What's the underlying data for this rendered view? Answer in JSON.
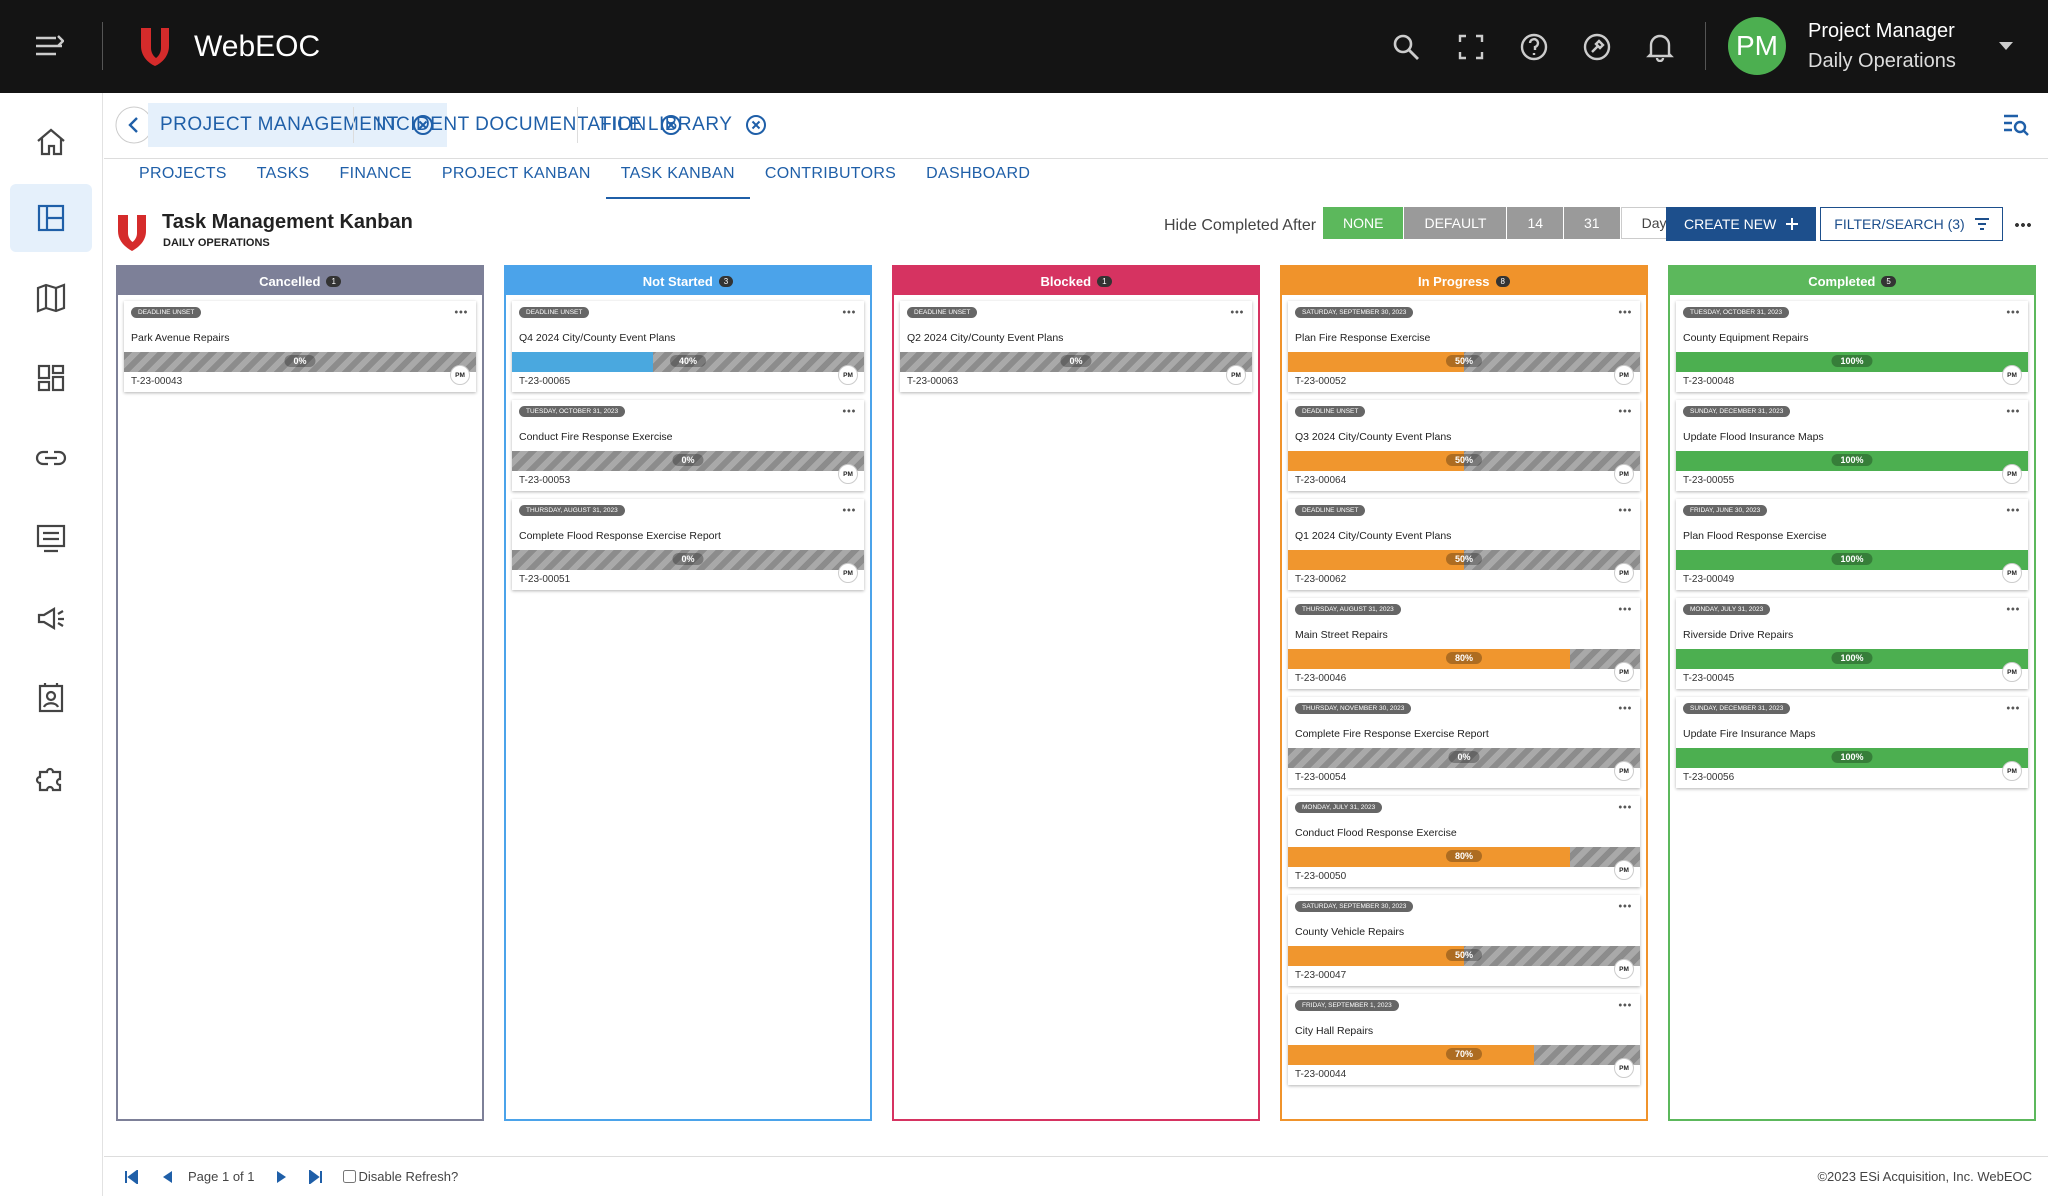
{
  "header": {
    "app_name": "WebEOC",
    "user_name": "Project Manager",
    "user_context": "Daily Operations",
    "user_initials": "PM"
  },
  "tabs": [
    "PROJECT MANAGEMENT",
    "INCIDENT DOCUMENTATION",
    "FILE LIBRARY"
  ],
  "subnav": {
    "items": [
      "PROJECTS",
      "TASKS",
      "FINANCE",
      "PROJECT KANBAN",
      "TASK KANBAN",
      "CONTRIBUTORS",
      "DASHBOARD"
    ],
    "active": 4
  },
  "board": {
    "title": "Task Management Kanban",
    "subtitle": "DAILY OPERATIONS",
    "hide_label": "Hide Completed After",
    "hide_options": [
      "NONE",
      "DEFAULT",
      "14",
      "31"
    ],
    "hide_active": 0,
    "hide_unit": "Days",
    "create_button": "CREATE NEW",
    "filter_button": "FILTER/SEARCH (3)"
  },
  "columns": [
    {
      "name": "Cancelled",
      "count": "1",
      "color": "#7d8098",
      "fill": "#9e9e9e",
      "cards": [
        {
          "date": "DEADLINE UNSET",
          "title": "Park Avenue Repairs",
          "progress": "0%",
          "id": "T-23-00043",
          "assignee": "PM"
        }
      ]
    },
    {
      "name": "Not Started",
      "count": "3",
      "color": "#4ba3ea",
      "fill": "#4aa8df",
      "cards": [
        {
          "date": "DEADLINE UNSET",
          "title": "Q4 2024 City/County Event Plans",
          "progress": "40%",
          "id": "T-23-00065",
          "assignee": "PM"
        },
        {
          "date": "TUESDAY, OCTOBER 31, 2023",
          "title": "Conduct Fire Response Exercise",
          "progress": "0%",
          "id": "T-23-00053",
          "assignee": "PM"
        },
        {
          "date": "THURSDAY, AUGUST 31, 2023",
          "title": "Complete Flood Response Exercise Report",
          "progress": "0%",
          "id": "T-23-00051",
          "assignee": "PM"
        }
      ]
    },
    {
      "name": "Blocked",
      "count": "1",
      "color": "#d63361",
      "fill": "#d63361",
      "cards": [
        {
          "date": "DEADLINE UNSET",
          "title": "Q2 2024 City/County Event Plans",
          "progress": "0%",
          "id": "T-23-00063",
          "assignee": "PM"
        }
      ]
    },
    {
      "name": "In Progress",
      "count": "8",
      "color": "#f0932b",
      "fill": "#f0962e",
      "cards": [
        {
          "date": "SATURDAY, SEPTEMBER 30, 2023",
          "title": "Plan Fire Response Exercise",
          "progress": "50%",
          "id": "T-23-00052",
          "assignee": "PM"
        },
        {
          "date": "DEADLINE UNSET",
          "title": "Q3 2024 City/County Event Plans",
          "progress": "50%",
          "id": "T-23-00064",
          "assignee": "PM"
        },
        {
          "date": "DEADLINE UNSET",
          "title": "Q1 2024 City/County Event Plans",
          "progress": "50%",
          "id": "T-23-00062",
          "assignee": "PM"
        },
        {
          "date": "THURSDAY, AUGUST 31, 2023",
          "title": "Main Street Repairs",
          "progress": "80%",
          "id": "T-23-00046",
          "assignee": "PM"
        },
        {
          "date": "THURSDAY, NOVEMBER 30, 2023",
          "title": "Complete Fire Response Exercise Report",
          "progress": "0%",
          "id": "T-23-00054",
          "assignee": "PM"
        },
        {
          "date": "MONDAY, JULY 31, 2023",
          "title": "Conduct Flood Response Exercise",
          "progress": "80%",
          "id": "T-23-00050",
          "assignee": "PM"
        },
        {
          "date": "SATURDAY, SEPTEMBER 30, 2023",
          "title": "County Vehicle Repairs",
          "progress": "50%",
          "id": "T-23-00047",
          "assignee": "PM"
        },
        {
          "date": "FRIDAY, SEPTEMBER 1, 2023",
          "title": "City Hall Repairs",
          "progress": "70%",
          "id": "T-23-00044",
          "assignee": "PM"
        }
      ]
    },
    {
      "name": "Completed",
      "count": "5",
      "color": "#5cb85c",
      "fill": "#4caf50",
      "cards": [
        {
          "date": "TUESDAY, OCTOBER 31, 2023",
          "title": "County Equipment Repairs",
          "progress": "100%",
          "id": "T-23-00048",
          "assignee": "PM"
        },
        {
          "date": "SUNDAY, DECEMBER 31, 2023",
          "title": "Update Flood Insurance Maps",
          "progress": "100%",
          "id": "T-23-00055",
          "assignee": "PM"
        },
        {
          "date": "FRIDAY, JUNE 30, 2023",
          "title": "Plan Flood Response Exercise",
          "progress": "100%",
          "id": "T-23-00049",
          "assignee": "PM"
        },
        {
          "date": "MONDAY, JULY 31, 2023",
          "title": "Riverside Drive Repairs",
          "progress": "100%",
          "id": "T-23-00045",
          "assignee": "PM"
        },
        {
          "date": "SUNDAY, DECEMBER 31, 2023",
          "title": "Update Fire Insurance Maps",
          "progress": "100%",
          "id": "T-23-00056",
          "assignee": "PM"
        }
      ]
    }
  ],
  "footer": {
    "page": "Page 1 of 1",
    "refresh_label": "Disable Refresh?",
    "copyright": "©2023 ESi Acquisition, Inc. WebEOC"
  }
}
